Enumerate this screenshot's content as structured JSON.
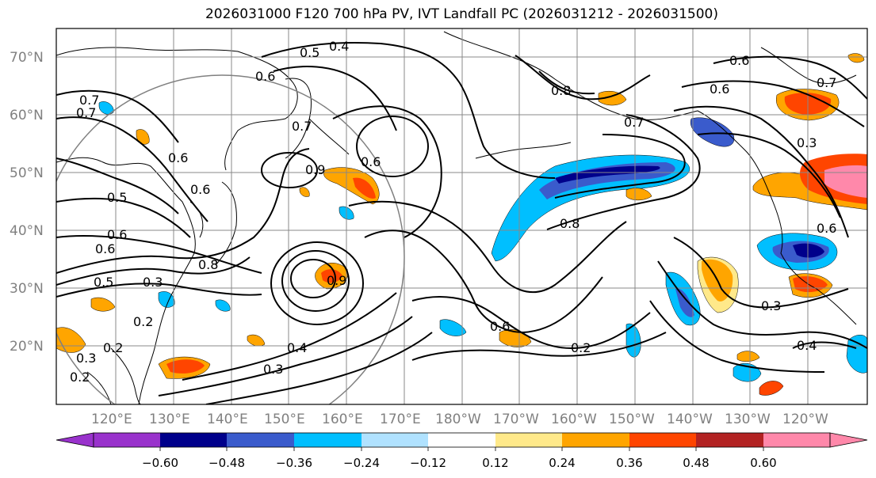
{
  "title": "2026031000 F120 700 hPa PV, IVT Landfall PC (2026031212 - 2026031500)",
  "map": {
    "lat_ticks": [
      "70°N",
      "60°N",
      "50°N",
      "40°N",
      "30°N",
      "20°N"
    ],
    "lon_ticks": [
      "120°E",
      "130°E",
      "140°E",
      "150°E",
      "160°E",
      "170°E",
      "180°W",
      "170°W",
      "160°W",
      "150°W",
      "140°W",
      "130°W",
      "120°W"
    ],
    "contour_labels": [
      {
        "text": "0.4"
      },
      {
        "text": "0.5"
      },
      {
        "text": "0.6"
      },
      {
        "text": "0.6"
      },
      {
        "text": "0.7"
      },
      {
        "text": "0.8"
      },
      {
        "text": "0.6"
      },
      {
        "text": "0.7"
      },
      {
        "text": "0.6"
      },
      {
        "text": "0.5"
      },
      {
        "text": "0.7"
      },
      {
        "text": "0.6"
      },
      {
        "text": "0.9"
      },
      {
        "text": "0.7"
      },
      {
        "text": "0.8"
      },
      {
        "text": "0.6"
      },
      {
        "text": "0.3"
      },
      {
        "text": "0.6"
      },
      {
        "text": "0.5"
      },
      {
        "text": "0.3"
      },
      {
        "text": "0.2"
      },
      {
        "text": "0.2"
      },
      {
        "text": "0.3"
      },
      {
        "text": "0.2"
      },
      {
        "text": "0.9"
      },
      {
        "text": "0.4"
      },
      {
        "text": "0.3"
      },
      {
        "text": "0.6"
      },
      {
        "text": "0.2"
      },
      {
        "text": "0.8"
      },
      {
        "text": "0.3"
      },
      {
        "text": "0.4"
      },
      {
        "text": "0.6"
      },
      {
        "text": "0.7"
      },
      {
        "text": "0.6"
      }
    ]
  },
  "colorbar": {
    "tick_labels": [
      "−0.60",
      "−0.48",
      "−0.36",
      "−0.24",
      "−0.12",
      "0.12",
      "0.24",
      "0.36",
      "0.48",
      "0.60"
    ],
    "colors": [
      "#9932CC",
      "#00008B",
      "#3A5BCC",
      "#00BFFF",
      "#B0E2FF",
      "#FFFFFF",
      "#FFE98A",
      "#FFA500",
      "#FF4500",
      "#B22222",
      "#FF88AA"
    ]
  }
}
